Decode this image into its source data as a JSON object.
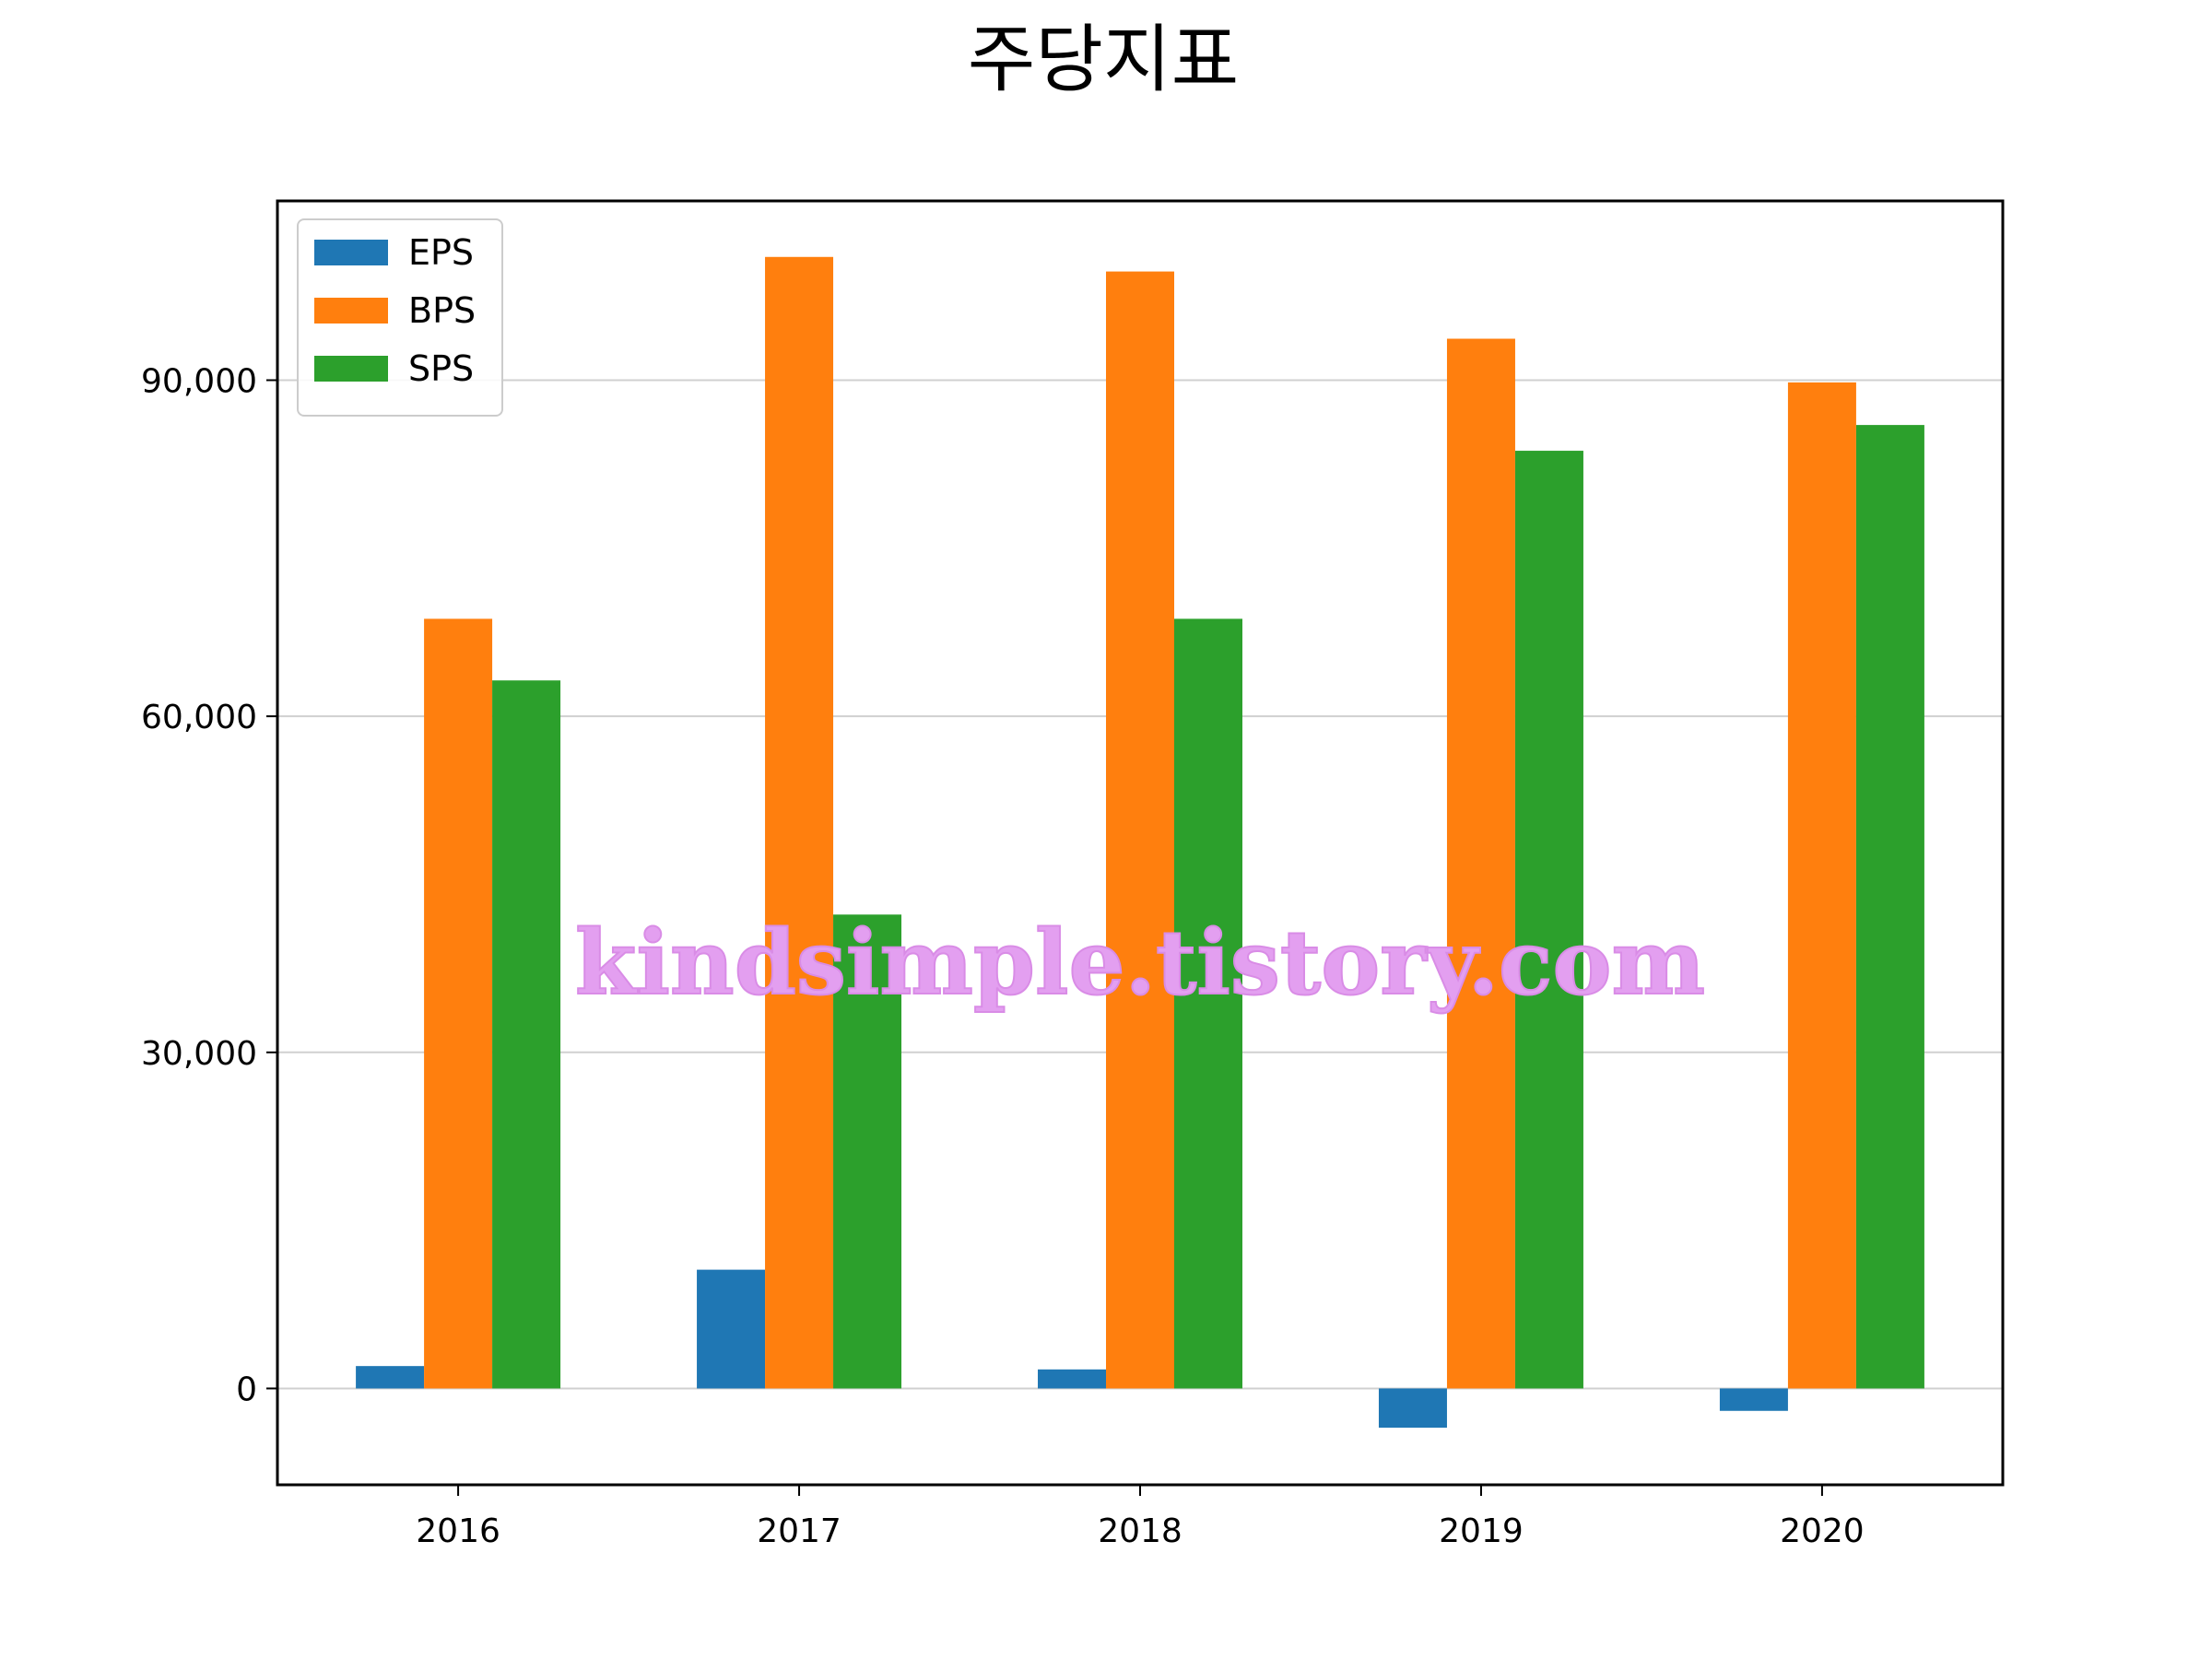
{
  "chart_data": {
    "type": "bar",
    "title": "주당지표",
    "xlabel": "",
    "ylabel": "",
    "categories": [
      "2016",
      "2017",
      "2018",
      "2019",
      "2020"
    ],
    "series": [
      {
        "name": "EPS",
        "color": "#1f77b4",
        "values": [
          2000,
          10600,
          1700,
          -3500,
          -2000
        ]
      },
      {
        "name": "BPS",
        "color": "#ff7f0e",
        "values": [
          68700,
          101000,
          99700,
          93700,
          89800
        ]
      },
      {
        "name": "SPS",
        "color": "#2ca02c",
        "values": [
          63200,
          42300,
          68700,
          83700,
          86000
        ]
      }
    ],
    "ylim": [
      -8600,
      106000
    ],
    "yticks": [
      0,
      30000,
      60000,
      90000
    ],
    "ytick_labels": [
      "0",
      "30,000",
      "60,000",
      "90,000"
    ],
    "grid": "y",
    "legend_position": "top-left"
  },
  "watermark": {
    "text": "kindsimple.tistory.com",
    "color": "#e39ff0"
  }
}
